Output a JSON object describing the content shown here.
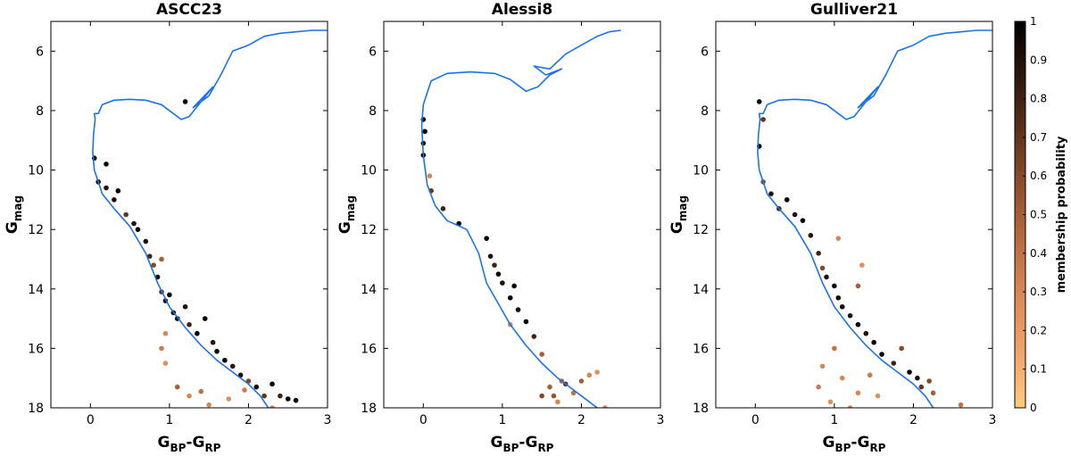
{
  "figure": {
    "colorbar": {
      "label": "membership probability",
      "range": [
        0,
        1
      ],
      "ticks": [
        "0",
        "0.1",
        "0.2",
        "0.3",
        "0.4",
        "0.5",
        "0.6",
        "0.7",
        "0.8",
        "0.9",
        "1"
      ],
      "colormap": [
        "#ffca80",
        "#f0a46b",
        "#d98a56",
        "#b96c42",
        "#8e4f2e",
        "#5e321c",
        "#2d170c",
        "#000000"
      ]
    },
    "line_color": "#1a73e8"
  },
  "chart_data": [
    {
      "type": "scatter",
      "title": "ASCC23",
      "xlabel": {
        "main": "G",
        "sub1": "BP",
        "sep": "-G",
        "sub2": "RP"
      },
      "ylabel": {
        "main": "G",
        "sub": "mag"
      },
      "xlim": [
        -0.5,
        3
      ],
      "ylim": [
        18,
        5
      ],
      "y_inverted": true,
      "xticks": [
        "0",
        "1",
        "2",
        "3"
      ],
      "yticks": [
        "6",
        "8",
        "10",
        "12",
        "14",
        "16",
        "18"
      ],
      "isochrone": [
        [
          0.05,
          10.0
        ],
        [
          0.03,
          9.4
        ],
        [
          0.04,
          8.8
        ],
        [
          0.06,
          8.3
        ],
        [
          0.05,
          8.1
        ],
        [
          0.1,
          8.1
        ],
        [
          0.15,
          7.8
        ],
        [
          0.3,
          7.65
        ],
        [
          0.5,
          7.62
        ],
        [
          0.7,
          7.65
        ],
        [
          0.9,
          7.8
        ],
        [
          1.05,
          8.1
        ],
        [
          1.15,
          8.3
        ],
        [
          1.25,
          8.2
        ],
        [
          1.4,
          7.7
        ],
        [
          1.55,
          7.2
        ],
        [
          1.3,
          7.9
        ],
        [
          1.5,
          7.5
        ],
        [
          1.65,
          6.8
        ],
        [
          1.8,
          6.0
        ],
        [
          2.0,
          5.8
        ],
        [
          2.2,
          5.5
        ],
        [
          2.4,
          5.4
        ],
        [
          2.6,
          5.35
        ],
        [
          2.8,
          5.3
        ],
        [
          3.0,
          5.3
        ]
      ],
      "main_sequence": [
        [
          0.05,
          10.0
        ],
        [
          0.15,
          10.8
        ],
        [
          0.3,
          11.3
        ],
        [
          0.5,
          11.9
        ],
        [
          0.7,
          12.8
        ],
        [
          0.85,
          13.8
        ],
        [
          1.0,
          14.6
        ],
        [
          1.2,
          15.3
        ],
        [
          1.4,
          15.9
        ],
        [
          1.6,
          16.4
        ],
        [
          1.8,
          16.8
        ],
        [
          2.0,
          17.2
        ],
        [
          2.15,
          17.6
        ],
        [
          2.25,
          18.0
        ]
      ],
      "points": [
        {
          "x": 0.05,
          "y": 9.6,
          "p": 1
        },
        {
          "x": 0.1,
          "y": 10.4,
          "p": 0.95
        },
        {
          "x": 0.2,
          "y": 9.8,
          "p": 1
        },
        {
          "x": 0.2,
          "y": 10.6,
          "p": 0.9
        },
        {
          "x": 0.3,
          "y": 11.0,
          "p": 0.9
        },
        {
          "x": 0.35,
          "y": 10.7,
          "p": 1
        },
        {
          "x": 0.45,
          "y": 11.5,
          "p": 0.7
        },
        {
          "x": 0.55,
          "y": 11.8,
          "p": 0.9
        },
        {
          "x": 0.6,
          "y": 12.0,
          "p": 1
        },
        {
          "x": 0.7,
          "y": 12.4,
          "p": 0.9
        },
        {
          "x": 0.75,
          "y": 12.9,
          "p": 0.8
        },
        {
          "x": 0.8,
          "y": 13.2,
          "p": 0.6
        },
        {
          "x": 0.85,
          "y": 13.6,
          "p": 0.95
        },
        {
          "x": 0.9,
          "y": 13.0,
          "p": 0.5
        },
        {
          "x": 0.9,
          "y": 14.1,
          "p": 0.7
        },
        {
          "x": 0.95,
          "y": 14.4,
          "p": 0.9
        },
        {
          "x": 1.0,
          "y": 14.2,
          "p": 1
        },
        {
          "x": 1.05,
          "y": 14.8,
          "p": 0.95
        },
        {
          "x": 1.1,
          "y": 15.0,
          "p": 1
        },
        {
          "x": 1.2,
          "y": 14.6,
          "p": 0.9
        },
        {
          "x": 1.25,
          "y": 15.2,
          "p": 0.8
        },
        {
          "x": 1.35,
          "y": 15.5,
          "p": 1
        },
        {
          "x": 1.45,
          "y": 15.0,
          "p": 1
        },
        {
          "x": 1.55,
          "y": 15.8,
          "p": 0.9
        },
        {
          "x": 1.6,
          "y": 16.1,
          "p": 0.95
        },
        {
          "x": 1.7,
          "y": 16.4,
          "p": 1
        },
        {
          "x": 1.8,
          "y": 16.6,
          "p": 0.85
        },
        {
          "x": 1.9,
          "y": 16.9,
          "p": 0.9
        },
        {
          "x": 2.0,
          "y": 17.1,
          "p": 0.6
        },
        {
          "x": 2.1,
          "y": 17.3,
          "p": 0.95
        },
        {
          "x": 2.2,
          "y": 17.6,
          "p": 0.7
        },
        {
          "x": 2.3,
          "y": 17.2,
          "p": 1
        },
        {
          "x": 2.4,
          "y": 17.6,
          "p": 0.8
        },
        {
          "x": 2.5,
          "y": 17.7,
          "p": 1
        },
        {
          "x": 2.6,
          "y": 17.75,
          "p": 1
        },
        {
          "x": 1.2,
          "y": 7.7,
          "p": 1
        },
        {
          "x": 0.95,
          "y": 15.5,
          "p": 0.3
        },
        {
          "x": 0.9,
          "y": 16.0,
          "p": 0.35
        },
        {
          "x": 0.95,
          "y": 16.5,
          "p": 0.25
        },
        {
          "x": 1.25,
          "y": 17.6,
          "p": 0.3
        },
        {
          "x": 1.1,
          "y": 17.3,
          "p": 0.5
        },
        {
          "x": 1.4,
          "y": 17.45,
          "p": 0.4
        },
        {
          "x": 1.5,
          "y": 17.9,
          "p": 0.3
        },
        {
          "x": 1.75,
          "y": 17.7,
          "p": 0.25
        },
        {
          "x": 1.95,
          "y": 17.4,
          "p": 0.35
        },
        {
          "x": 2.3,
          "y": 18.0,
          "p": 0.3
        }
      ]
    },
    {
      "type": "scatter",
      "title": "Alessi8",
      "xlabel": {
        "main": "G",
        "sub1": "BP",
        "sep": "-G",
        "sub2": "RP"
      },
      "ylabel": {
        "main": "G",
        "sub": "mag"
      },
      "xlim": [
        -0.5,
        3
      ],
      "ylim": [
        18,
        5
      ],
      "y_inverted": true,
      "xticks": [
        "0",
        "1",
        "2",
        "3"
      ],
      "yticks": [
        "6",
        "8",
        "10",
        "12",
        "14",
        "16",
        "18"
      ],
      "isochrone": [
        [
          0.0,
          9.5
        ],
        [
          -0.02,
          8.5
        ],
        [
          0.0,
          7.8
        ],
        [
          0.1,
          7.0
        ],
        [
          0.3,
          6.75
        ],
        [
          0.6,
          6.7
        ],
        [
          0.9,
          6.75
        ],
        [
          1.1,
          6.95
        ],
        [
          1.3,
          7.35
        ],
        [
          1.45,
          7.2
        ],
        [
          1.6,
          6.8
        ],
        [
          1.75,
          6.6
        ],
        [
          1.55,
          6.8
        ],
        [
          1.4,
          6.5
        ],
        [
          1.6,
          6.6
        ],
        [
          1.8,
          6.1
        ],
        [
          2.0,
          5.8
        ],
        [
          2.2,
          5.5
        ],
        [
          2.35,
          5.35
        ],
        [
          2.5,
          5.3
        ]
      ],
      "main_sequence": [
        [
          0.0,
          9.5
        ],
        [
          0.05,
          10.5
        ],
        [
          0.15,
          11.2
        ],
        [
          0.3,
          11.7
        ],
        [
          0.55,
          12.0
        ],
        [
          0.7,
          12.8
        ],
        [
          0.8,
          13.8
        ],
        [
          0.95,
          14.5
        ],
        [
          1.1,
          15.2
        ],
        [
          1.3,
          15.9
        ],
        [
          1.5,
          16.5
        ],
        [
          1.7,
          17.0
        ],
        [
          1.9,
          17.4
        ],
        [
          2.1,
          17.8
        ],
        [
          2.2,
          18.0
        ]
      ],
      "points": [
        {
          "x": 0.0,
          "y": 8.3,
          "p": 1
        },
        {
          "x": 0.02,
          "y": 8.7,
          "p": 1
        },
        {
          "x": 0.0,
          "y": 9.1,
          "p": 1
        },
        {
          "x": 0.0,
          "y": 9.5,
          "p": 1
        },
        {
          "x": 0.08,
          "y": 10.2,
          "p": 0.3
        },
        {
          "x": 0.1,
          "y": 10.7,
          "p": 0.7
        },
        {
          "x": 0.25,
          "y": 11.3,
          "p": 0.8
        },
        {
          "x": 0.45,
          "y": 11.8,
          "p": 1
        },
        {
          "x": 0.8,
          "y": 12.3,
          "p": 1
        },
        {
          "x": 0.85,
          "y": 12.9,
          "p": 0.9
        },
        {
          "x": 0.9,
          "y": 13.2,
          "p": 0.8
        },
        {
          "x": 0.95,
          "y": 13.5,
          "p": 1
        },
        {
          "x": 1.0,
          "y": 13.8,
          "p": 0.9
        },
        {
          "x": 1.1,
          "y": 14.3,
          "p": 1
        },
        {
          "x": 1.15,
          "y": 13.9,
          "p": 1
        },
        {
          "x": 1.2,
          "y": 14.7,
          "p": 0.9
        },
        {
          "x": 1.3,
          "y": 15.1,
          "p": 1
        },
        {
          "x": 1.1,
          "y": 15.2,
          "p": 0.3
        },
        {
          "x": 1.4,
          "y": 15.6,
          "p": 0.8
        },
        {
          "x": 1.5,
          "y": 16.2,
          "p": 0.5
        },
        {
          "x": 1.5,
          "y": 17.6,
          "p": 0.6
        },
        {
          "x": 1.6,
          "y": 17.3,
          "p": 0.5
        },
        {
          "x": 1.7,
          "y": 17.8,
          "p": 0.3
        },
        {
          "x": 1.8,
          "y": 17.2,
          "p": 0.7
        },
        {
          "x": 1.9,
          "y": 17.5,
          "p": 0.4
        },
        {
          "x": 2.0,
          "y": 17.1,
          "p": 0.5
        },
        {
          "x": 2.1,
          "y": 16.9,
          "p": 0.3
        },
        {
          "x": 2.2,
          "y": 16.8,
          "p": 0.25
        },
        {
          "x": 2.3,
          "y": 18.0,
          "p": 0.3
        },
        {
          "x": 1.65,
          "y": 17.6,
          "p": 0.55
        },
        {
          "x": 1.75,
          "y": 17.1,
          "p": 0.45
        }
      ]
    },
    {
      "type": "scatter",
      "title": "Gulliver21",
      "xlabel": {
        "main": "G",
        "sub1": "BP",
        "sep": "-G",
        "sub2": "RP"
      },
      "ylabel": {
        "main": "G",
        "sub": "mag"
      },
      "xlim": [
        -0.5,
        3
      ],
      "ylim": [
        18,
        5
      ],
      "y_inverted": true,
      "xticks": [
        "0",
        "1",
        "2",
        "3"
      ],
      "yticks": [
        "6",
        "8",
        "10",
        "12",
        "14",
        "16",
        "18"
      ],
      "isochrone": [
        [
          0.05,
          10.0
        ],
        [
          0.03,
          9.4
        ],
        [
          0.04,
          8.8
        ],
        [
          0.06,
          8.3
        ],
        [
          0.05,
          8.1
        ],
        [
          0.1,
          8.1
        ],
        [
          0.15,
          7.8
        ],
        [
          0.3,
          7.65
        ],
        [
          0.5,
          7.62
        ],
        [
          0.7,
          7.65
        ],
        [
          0.9,
          7.8
        ],
        [
          1.05,
          8.1
        ],
        [
          1.15,
          8.3
        ],
        [
          1.25,
          8.2
        ],
        [
          1.4,
          7.7
        ],
        [
          1.55,
          7.2
        ],
        [
          1.3,
          7.9
        ],
        [
          1.5,
          7.5
        ],
        [
          1.65,
          6.8
        ],
        [
          1.8,
          6.0
        ],
        [
          2.0,
          5.8
        ],
        [
          2.2,
          5.5
        ],
        [
          2.4,
          5.4
        ],
        [
          2.6,
          5.35
        ],
        [
          2.8,
          5.3
        ],
        [
          3.0,
          5.3
        ]
      ],
      "main_sequence": [
        [
          0.05,
          10.0
        ],
        [
          0.15,
          10.8
        ],
        [
          0.3,
          11.3
        ],
        [
          0.5,
          11.9
        ],
        [
          0.7,
          12.8
        ],
        [
          0.85,
          13.8
        ],
        [
          1.0,
          14.6
        ],
        [
          1.2,
          15.3
        ],
        [
          1.4,
          15.9
        ],
        [
          1.6,
          16.4
        ],
        [
          1.8,
          16.8
        ],
        [
          2.0,
          17.2
        ],
        [
          2.15,
          17.6
        ],
        [
          2.25,
          18.0
        ]
      ],
      "points": [
        {
          "x": 0.05,
          "y": 7.7,
          "p": 1
        },
        {
          "x": 0.1,
          "y": 8.3,
          "p": 0.7
        },
        {
          "x": 0.05,
          "y": 9.2,
          "p": 1
        },
        {
          "x": 0.1,
          "y": 10.4,
          "p": 0.6
        },
        {
          "x": 0.2,
          "y": 10.8,
          "p": 0.9
        },
        {
          "x": 0.3,
          "y": 11.3,
          "p": 0.8
        },
        {
          "x": 0.4,
          "y": 11.0,
          "p": 1
        },
        {
          "x": 0.5,
          "y": 11.5,
          "p": 0.9
        },
        {
          "x": 0.6,
          "y": 11.7,
          "p": 1
        },
        {
          "x": 0.7,
          "y": 12.2,
          "p": 0.9
        },
        {
          "x": 0.8,
          "y": 12.8,
          "p": 0.8
        },
        {
          "x": 0.85,
          "y": 13.3,
          "p": 0.6
        },
        {
          "x": 0.9,
          "y": 13.6,
          "p": 0.9
        },
        {
          "x": 1.0,
          "y": 13.9,
          "p": 1
        },
        {
          "x": 1.05,
          "y": 14.3,
          "p": 0.95
        },
        {
          "x": 1.1,
          "y": 14.6,
          "p": 1
        },
        {
          "x": 1.2,
          "y": 14.9,
          "p": 0.9
        },
        {
          "x": 1.3,
          "y": 13.9,
          "p": 0.5
        },
        {
          "x": 1.3,
          "y": 15.2,
          "p": 1
        },
        {
          "x": 1.4,
          "y": 15.5,
          "p": 0.9
        },
        {
          "x": 1.5,
          "y": 15.8,
          "p": 0.95
        },
        {
          "x": 1.6,
          "y": 16.2,
          "p": 1
        },
        {
          "x": 1.75,
          "y": 16.5,
          "p": 0.8
        },
        {
          "x": 1.85,
          "y": 16.0,
          "p": 0.6
        },
        {
          "x": 1.95,
          "y": 16.8,
          "p": 1
        },
        {
          "x": 2.05,
          "y": 17.0,
          "p": 0.9
        },
        {
          "x": 2.1,
          "y": 17.3,
          "p": 0.7
        },
        {
          "x": 2.2,
          "y": 17.1,
          "p": 0.6
        },
        {
          "x": 2.25,
          "y": 17.5,
          "p": 0.5
        },
        {
          "x": 2.6,
          "y": 17.9,
          "p": 0.4
        },
        {
          "x": 1.05,
          "y": 12.3,
          "p": 0.3
        },
        {
          "x": 1.35,
          "y": 13.2,
          "p": 0.25
        },
        {
          "x": 0.85,
          "y": 16.6,
          "p": 0.3
        },
        {
          "x": 0.8,
          "y": 17.3,
          "p": 0.35
        },
        {
          "x": 1.0,
          "y": 16.0,
          "p": 0.4
        },
        {
          "x": 1.1,
          "y": 17.0,
          "p": 0.3
        },
        {
          "x": 0.95,
          "y": 17.8,
          "p": 0.25
        },
        {
          "x": 1.3,
          "y": 17.5,
          "p": 0.3
        },
        {
          "x": 1.45,
          "y": 16.9,
          "p": 0.35
        },
        {
          "x": 1.55,
          "y": 17.6,
          "p": 0.25
        },
        {
          "x": 1.2,
          "y": 18.0,
          "p": 0.3
        }
      ]
    }
  ]
}
